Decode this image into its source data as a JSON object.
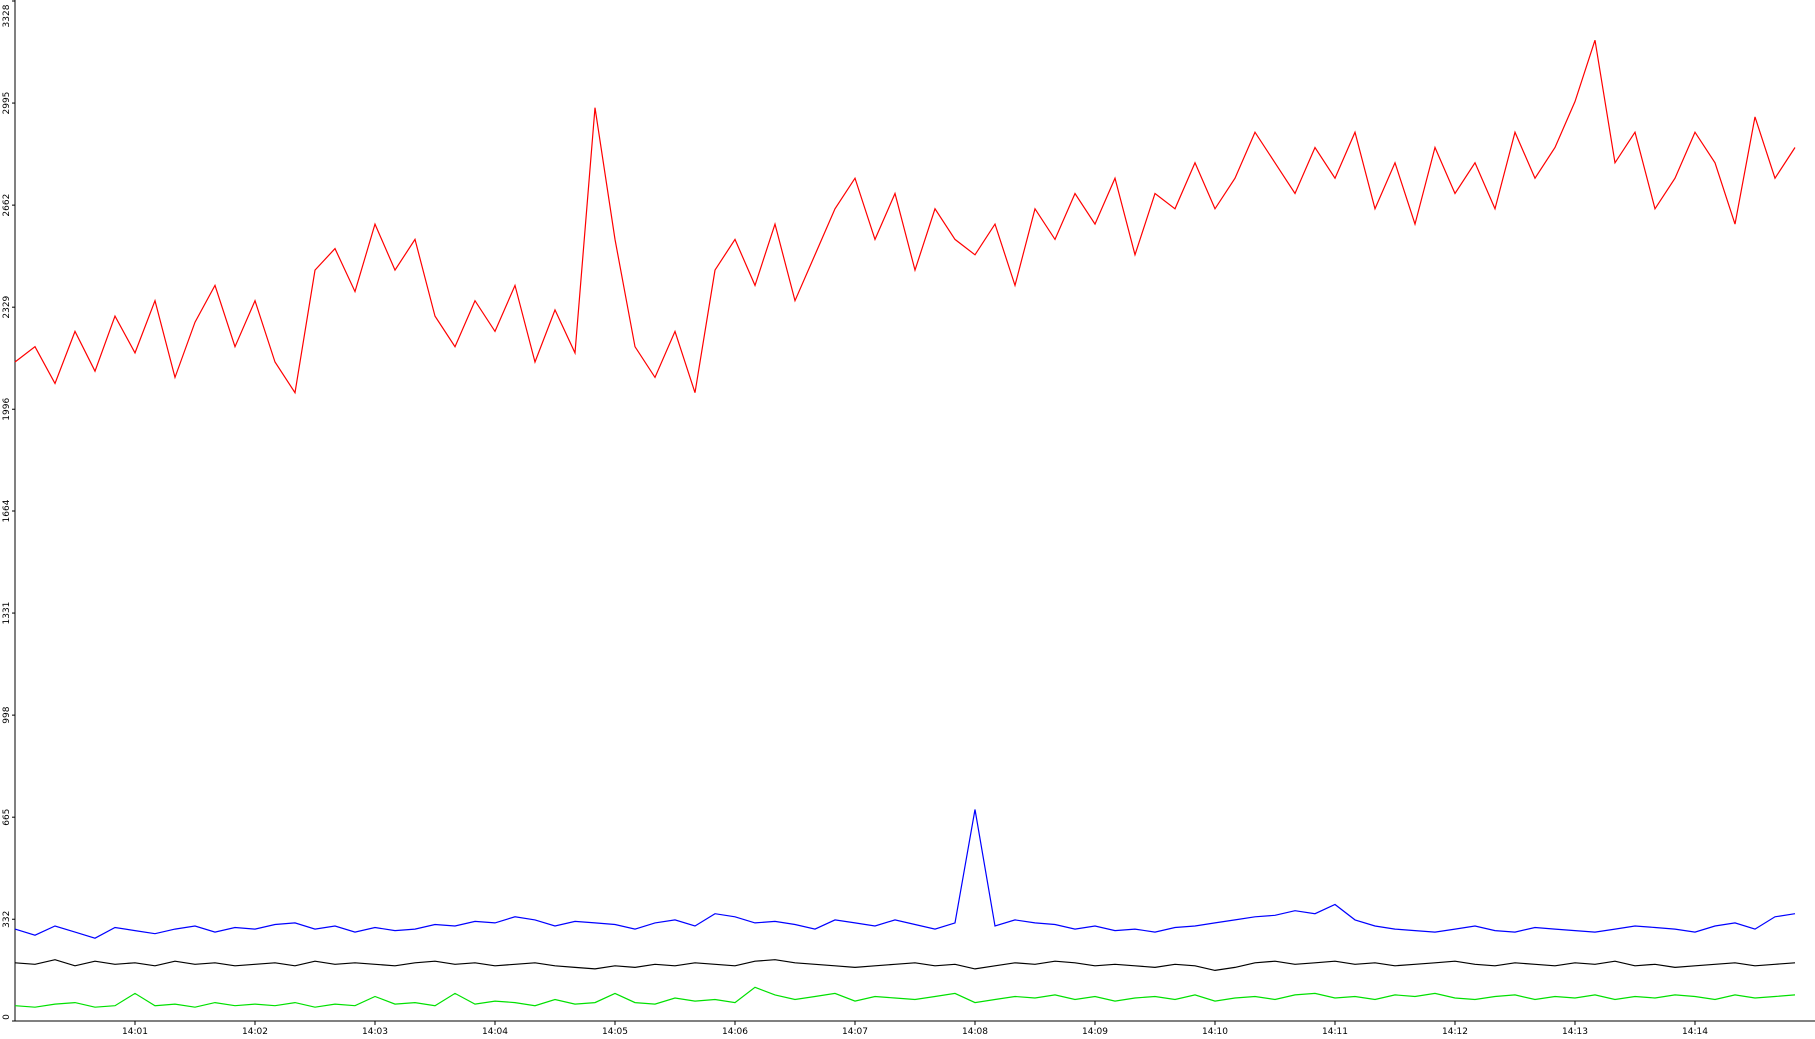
{
  "chart_data": {
    "type": "line",
    "categories": [
      null,
      null,
      null,
      null,
      null,
      null,
      "14:01",
      null,
      null,
      null,
      null,
      null,
      "14:02",
      null,
      null,
      null,
      null,
      null,
      "14:03",
      null,
      null,
      null,
      null,
      null,
      "14:04",
      null,
      null,
      null,
      null,
      null,
      "14:05",
      null,
      null,
      null,
      null,
      null,
      "14:06",
      null,
      null,
      null,
      null,
      null,
      "14:07",
      null,
      null,
      null,
      null,
      null,
      "14:08",
      null,
      null,
      null,
      null,
      null,
      "14:09",
      null,
      null,
      null,
      null,
      null,
      "14:10",
      null,
      null,
      null,
      null,
      null,
      "14:11",
      null,
      null,
      null,
      null,
      null,
      "14:12",
      null,
      null,
      null,
      null,
      null,
      "14:13",
      null,
      null,
      null,
      null,
      null,
      "14:14",
      null,
      null,
      null,
      null,
      null
    ],
    "series": [
      {
        "color": "#ff0000",
        "values": [
          2150,
          2200,
          2080,
          2250,
          2120,
          2300,
          2180,
          2350,
          2100,
          2280,
          2400,
          2200,
          2350,
          2150,
          2050,
          2450,
          2520,
          2380,
          2600,
          2450,
          2550,
          2300,
          2200,
          2350,
          2250,
          2400,
          2150,
          2320,
          2180,
          2980,
          2550,
          2200,
          2100,
          2250,
          2050,
          2450,
          2550,
          2400,
          2600,
          2350,
          2500,
          2650,
          2750,
          2550,
          2700,
          2450,
          2650,
          2550,
          2500,
          2600,
          2400,
          2650,
          2550,
          2700,
          2600,
          2750,
          2500,
          2700,
          2650,
          2800,
          2650,
          2750,
          2900,
          2800,
          2700,
          2850,
          2750,
          2900,
          2650,
          2800,
          2600,
          2850,
          2700,
          2800,
          2650,
          2900,
          2750,
          2850,
          3000,
          3200,
          2800,
          2900,
          2650,
          2750,
          2900,
          2800,
          2600,
          2950,
          2750,
          2850
        ]
      },
      {
        "color": "#0000ff",
        "values": [
          300,
          280,
          310,
          290,
          270,
          305,
          295,
          285,
          300,
          310,
          290,
          305,
          300,
          315,
          320,
          300,
          310,
          290,
          305,
          295,
          300,
          315,
          310,
          325,
          320,
          340,
          330,
          310,
          325,
          320,
          315,
          300,
          320,
          330,
          310,
          350,
          340,
          320,
          325,
          315,
          300,
          330,
          320,
          310,
          330,
          315,
          300,
          320,
          690,
          310,
          330,
          320,
          315,
          300,
          310,
          295,
          300,
          290,
          305,
          310,
          320,
          330,
          340,
          345,
          360,
          350,
          380,
          330,
          310,
          300,
          295,
          290,
          300,
          310,
          295,
          290,
          305,
          300,
          295,
          290,
          300,
          310,
          305,
          300,
          290,
          310,
          320,
          300,
          340,
          350
        ]
      },
      {
        "color": "#000000",
        "values": [
          190,
          185,
          200,
          180,
          195,
          185,
          190,
          180,
          195,
          185,
          190,
          180,
          185,
          190,
          180,
          195,
          185,
          190,
          185,
          180,
          190,
          195,
          185,
          190,
          180,
          185,
          190,
          180,
          175,
          170,
          180,
          175,
          185,
          180,
          190,
          185,
          180,
          195,
          200,
          190,
          185,
          180,
          175,
          180,
          185,
          190,
          180,
          185,
          170,
          180,
          190,
          185,
          195,
          190,
          180,
          185,
          180,
          175,
          185,
          180,
          165,
          175,
          190,
          195,
          185,
          190,
          195,
          185,
          190,
          180,
          185,
          190,
          195,
          185,
          180,
          190,
          185,
          180,
          190,
          185,
          195,
          180,
          185,
          175,
          180,
          185,
          190,
          180,
          185,
          190
        ]
      },
      {
        "color": "#00e000",
        "values": [
          50,
          45,
          55,
          60,
          45,
          50,
          90,
          50,
          55,
          45,
          60,
          50,
          55,
          50,
          60,
          45,
          55,
          50,
          80,
          55,
          60,
          50,
          90,
          55,
          65,
          60,
          50,
          70,
          55,
          60,
          90,
          60,
          55,
          75,
          65,
          70,
          60,
          110,
          85,
          70,
          80,
          90,
          65,
          80,
          75,
          70,
          80,
          90,
          60,
          70,
          80,
          75,
          85,
          70,
          80,
          65,
          75,
          80,
          70,
          85,
          65,
          75,
          80,
          70,
          85,
          90,
          75,
          80,
          70,
          85,
          80,
          90,
          75,
          70,
          80,
          85,
          70,
          80,
          75,
          85,
          70,
          80,
          75,
          85,
          80,
          70,
          85,
          75,
          80,
          85
        ]
      }
    ],
    "ylim": [
      0,
      3328
    ],
    "yticks": [
      0,
      332,
      665,
      998,
      1331,
      1664,
      1996,
      2329,
      2662,
      2995,
      3328
    ]
  }
}
